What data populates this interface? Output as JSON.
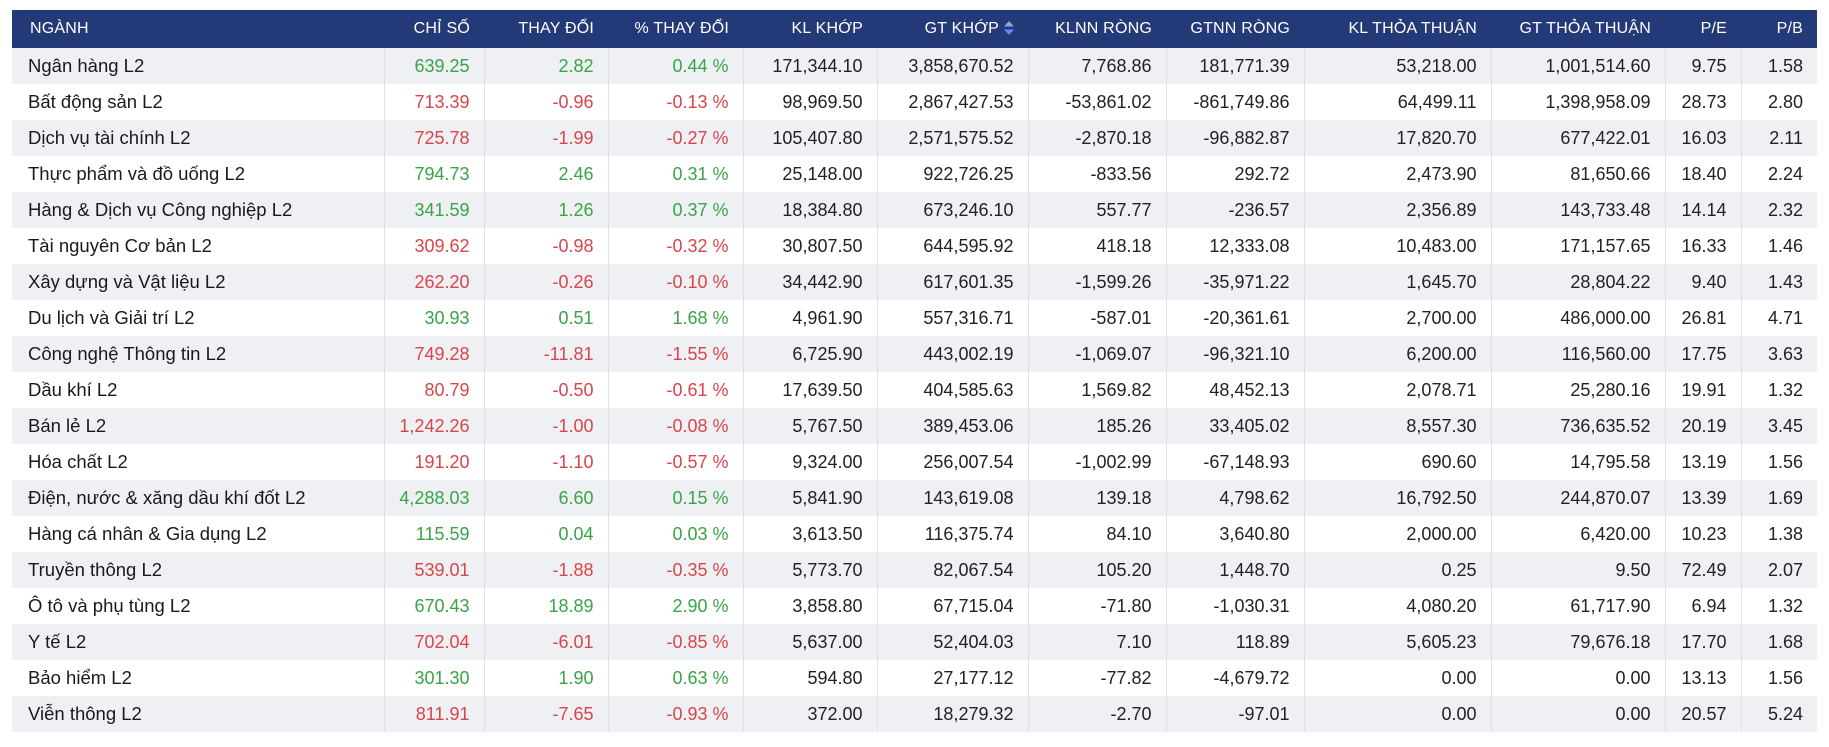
{
  "colors": {
    "header_bg": "#243a78",
    "header_text": "#ffffff",
    "row_stripe": "#eef0f3",
    "up": "#3aa447",
    "down": "#d9454a"
  },
  "table": {
    "sorted_column": "gt_khop",
    "sort_icon": "sort-arrows-icon",
    "headers": {
      "nganh": "NGÀNH",
      "chi_so": "CHỈ SỐ",
      "thay_doi": "THAY ĐỔI",
      "pct_thay_doi": "% THAY ĐỔI",
      "kl_khop": "KL KHỚP",
      "gt_khop": "GT KHỚP",
      "klnn_rong": "KLNN RÒNG",
      "gtnn_rong": "GTNN RÒNG",
      "kl_thoa_thuan": "KL THỎA THUẬN",
      "gt_thoa_thuan": "GT THỎA THUẬN",
      "pe": "P/E",
      "pb": "P/B"
    },
    "rows": [
      {
        "nganh": "Ngân hàng L2",
        "chi_so": "639.25",
        "thay_doi": "2.82",
        "pct_thay_doi": "0.44 %",
        "kl_khop": "171,344.10",
        "gt_khop": "3,858,670.52",
        "klnn_rong": "7,768.86",
        "gtnn_rong": "181,771.39",
        "kl_thoa_thuan": "53,218.00",
        "gt_thoa_thuan": "1,001,514.60",
        "pe": "9.75",
        "pb": "1.58",
        "trend": "up"
      },
      {
        "nganh": "Bất động sản L2",
        "chi_so": "713.39",
        "thay_doi": "-0.96",
        "pct_thay_doi": "-0.13 %",
        "kl_khop": "98,969.50",
        "gt_khop": "2,867,427.53",
        "klnn_rong": "-53,861.02",
        "gtnn_rong": "-861,749.86",
        "kl_thoa_thuan": "64,499.11",
        "gt_thoa_thuan": "1,398,958.09",
        "pe": "28.73",
        "pb": "2.80",
        "trend": "down"
      },
      {
        "nganh": "Dịch vụ tài chính L2",
        "chi_so": "725.78",
        "thay_doi": "-1.99",
        "pct_thay_doi": "-0.27 %",
        "kl_khop": "105,407.80",
        "gt_khop": "2,571,575.52",
        "klnn_rong": "-2,870.18",
        "gtnn_rong": "-96,882.87",
        "kl_thoa_thuan": "17,820.70",
        "gt_thoa_thuan": "677,422.01",
        "pe": "16.03",
        "pb": "2.11",
        "trend": "down"
      },
      {
        "nganh": "Thực phẩm và đồ uống L2",
        "chi_so": "794.73",
        "thay_doi": "2.46",
        "pct_thay_doi": "0.31 %",
        "kl_khop": "25,148.00",
        "gt_khop": "922,726.25",
        "klnn_rong": "-833.56",
        "gtnn_rong": "292.72",
        "kl_thoa_thuan": "2,473.90",
        "gt_thoa_thuan": "81,650.66",
        "pe": "18.40",
        "pb": "2.24",
        "trend": "up"
      },
      {
        "nganh": "Hàng & Dịch vụ Công nghiệp L2",
        "chi_so": "341.59",
        "thay_doi": "1.26",
        "pct_thay_doi": "0.37 %",
        "kl_khop": "18,384.80",
        "gt_khop": "673,246.10",
        "klnn_rong": "557.77",
        "gtnn_rong": "-236.57",
        "kl_thoa_thuan": "2,356.89",
        "gt_thoa_thuan": "143,733.48",
        "pe": "14.14",
        "pb": "2.32",
        "trend": "up"
      },
      {
        "nganh": "Tài nguyên Cơ bản L2",
        "chi_so": "309.62",
        "thay_doi": "-0.98",
        "pct_thay_doi": "-0.32 %",
        "kl_khop": "30,807.50",
        "gt_khop": "644,595.92",
        "klnn_rong": "418.18",
        "gtnn_rong": "12,333.08",
        "kl_thoa_thuan": "10,483.00",
        "gt_thoa_thuan": "171,157.65",
        "pe": "16.33",
        "pb": "1.46",
        "trend": "down"
      },
      {
        "nganh": "Xây dựng và Vật liệu L2",
        "chi_so": "262.20",
        "thay_doi": "-0.26",
        "pct_thay_doi": "-0.10 %",
        "kl_khop": "34,442.90",
        "gt_khop": "617,601.35",
        "klnn_rong": "-1,599.26",
        "gtnn_rong": "-35,971.22",
        "kl_thoa_thuan": "1,645.70",
        "gt_thoa_thuan": "28,804.22",
        "pe": "9.40",
        "pb": "1.43",
        "trend": "down"
      },
      {
        "nganh": "Du lịch và Giải trí L2",
        "chi_so": "30.93",
        "thay_doi": "0.51",
        "pct_thay_doi": "1.68 %",
        "kl_khop": "4,961.90",
        "gt_khop": "557,316.71",
        "klnn_rong": "-587.01",
        "gtnn_rong": "-20,361.61",
        "kl_thoa_thuan": "2,700.00",
        "gt_thoa_thuan": "486,000.00",
        "pe": "26.81",
        "pb": "4.71",
        "trend": "up"
      },
      {
        "nganh": "Công nghệ Thông tin L2",
        "chi_so": "749.28",
        "thay_doi": "-11.81",
        "pct_thay_doi": "-1.55 %",
        "kl_khop": "6,725.90",
        "gt_khop": "443,002.19",
        "klnn_rong": "-1,069.07",
        "gtnn_rong": "-96,321.10",
        "kl_thoa_thuan": "6,200.00",
        "gt_thoa_thuan": "116,560.00",
        "pe": "17.75",
        "pb": "3.63",
        "trend": "down"
      },
      {
        "nganh": "Dầu khí L2",
        "chi_so": "80.79",
        "thay_doi": "-0.50",
        "pct_thay_doi": "-0.61 %",
        "kl_khop": "17,639.50",
        "gt_khop": "404,585.63",
        "klnn_rong": "1,569.82",
        "gtnn_rong": "48,452.13",
        "kl_thoa_thuan": "2,078.71",
        "gt_thoa_thuan": "25,280.16",
        "pe": "19.91",
        "pb": "1.32",
        "trend": "down"
      },
      {
        "nganh": "Bán lẻ L2",
        "chi_so": "1,242.26",
        "thay_doi": "-1.00",
        "pct_thay_doi": "-0.08 %",
        "kl_khop": "5,767.50",
        "gt_khop": "389,453.06",
        "klnn_rong": "185.26",
        "gtnn_rong": "33,405.02",
        "kl_thoa_thuan": "8,557.30",
        "gt_thoa_thuan": "736,635.52",
        "pe": "20.19",
        "pb": "3.45",
        "trend": "down"
      },
      {
        "nganh": "Hóa chất L2",
        "chi_so": "191.20",
        "thay_doi": "-1.10",
        "pct_thay_doi": "-0.57 %",
        "kl_khop": "9,324.00",
        "gt_khop": "256,007.54",
        "klnn_rong": "-1,002.99",
        "gtnn_rong": "-67,148.93",
        "kl_thoa_thuan": "690.60",
        "gt_thoa_thuan": "14,795.58",
        "pe": "13.19",
        "pb": "1.56",
        "trend": "down"
      },
      {
        "nganh": "Điện, nước & xăng dầu khí đốt L2",
        "chi_so": "4,288.03",
        "thay_doi": "6.60",
        "pct_thay_doi": "0.15 %",
        "kl_khop": "5,841.90",
        "gt_khop": "143,619.08",
        "klnn_rong": "139.18",
        "gtnn_rong": "4,798.62",
        "kl_thoa_thuan": "16,792.50",
        "gt_thoa_thuan": "244,870.07",
        "pe": "13.39",
        "pb": "1.69",
        "trend": "up"
      },
      {
        "nganh": "Hàng cá nhân & Gia dụng L2",
        "chi_so": "115.59",
        "thay_doi": "0.04",
        "pct_thay_doi": "0.03 %",
        "kl_khop": "3,613.50",
        "gt_khop": "116,375.74",
        "klnn_rong": "84.10",
        "gtnn_rong": "3,640.80",
        "kl_thoa_thuan": "2,000.00",
        "gt_thoa_thuan": "6,420.00",
        "pe": "10.23",
        "pb": "1.38",
        "trend": "up"
      },
      {
        "nganh": "Truyền thông L2",
        "chi_so": "539.01",
        "thay_doi": "-1.88",
        "pct_thay_doi": "-0.35 %",
        "kl_khop": "5,773.70",
        "gt_khop": "82,067.54",
        "klnn_rong": "105.20",
        "gtnn_rong": "1,448.70",
        "kl_thoa_thuan": "0.25",
        "gt_thoa_thuan": "9.50",
        "pe": "72.49",
        "pb": "2.07",
        "trend": "down"
      },
      {
        "nganh": "Ô tô và phụ tùng L2",
        "chi_so": "670.43",
        "thay_doi": "18.89",
        "pct_thay_doi": "2.90 %",
        "kl_khop": "3,858.80",
        "gt_khop": "67,715.04",
        "klnn_rong": "-71.80",
        "gtnn_rong": "-1,030.31",
        "kl_thoa_thuan": "4,080.20",
        "gt_thoa_thuan": "61,717.90",
        "pe": "6.94",
        "pb": "1.32",
        "trend": "up"
      },
      {
        "nganh": "Y tế L2",
        "chi_so": "702.04",
        "thay_doi": "-6.01",
        "pct_thay_doi": "-0.85 %",
        "kl_khop": "5,637.00",
        "gt_khop": "52,404.03",
        "klnn_rong": "7.10",
        "gtnn_rong": "118.89",
        "kl_thoa_thuan": "5,605.23",
        "gt_thoa_thuan": "79,676.18",
        "pe": "17.70",
        "pb": "1.68",
        "trend": "down"
      },
      {
        "nganh": "Bảo hiểm L2",
        "chi_so": "301.30",
        "thay_doi": "1.90",
        "pct_thay_doi": "0.63 %",
        "kl_khop": "594.80",
        "gt_khop": "27,177.12",
        "klnn_rong": "-77.82",
        "gtnn_rong": "-4,679.72",
        "kl_thoa_thuan": "0.00",
        "gt_thoa_thuan": "0.00",
        "pe": "13.13",
        "pb": "1.56",
        "trend": "up"
      },
      {
        "nganh": "Viễn thông L2",
        "chi_so": "811.91",
        "thay_doi": "-7.65",
        "pct_thay_doi": "-0.93 %",
        "kl_khop": "372.00",
        "gt_khop": "18,279.32",
        "klnn_rong": "-2.70",
        "gtnn_rong": "-97.01",
        "kl_thoa_thuan": "0.00",
        "gt_thoa_thuan": "0.00",
        "pe": "20.57",
        "pb": "5.24",
        "trend": "down"
      }
    ]
  }
}
